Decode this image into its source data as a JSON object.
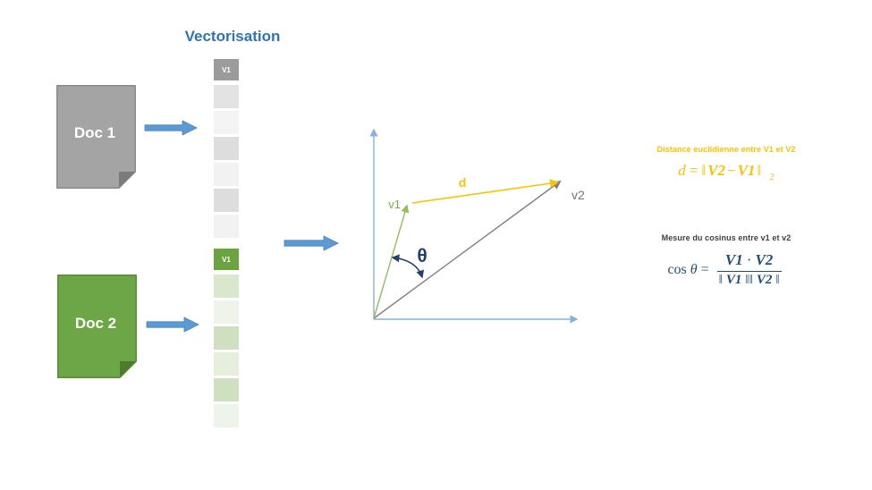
{
  "colors": {
    "title_blue": "#2E74B5",
    "arrow_blue": "#5B9BD5",
    "arrow_blue_dark": "#4A7EBB",
    "axis_blue": "#86B0E0",
    "v1_green": "#94BE58",
    "v2_gray": "#7F7F7F",
    "gold": "#FFC000",
    "theta_navy": "#26406E",
    "formula_navy": "#1F4E79"
  },
  "title": "Vectorisation",
  "docs": [
    {
      "label": "Doc 1",
      "fill": "#A4A4A4",
      "stroke": "#8C8C8C",
      "fold": "#7B7B7B"
    },
    {
      "label": "Doc 2",
      "fill": "#6CA646",
      "stroke": "#5C9038",
      "fold": "#4E7C2D"
    }
  ],
  "vector_columns": [
    {
      "header": "V1",
      "header_bg": "#9B9B9B",
      "cells": [
        "#E3E3E3",
        "#F4F4F4",
        "#DDDDDD",
        "#F2F2F2",
        "#DDDDDD",
        "#F2F2F2"
      ]
    },
    {
      "header": "V1",
      "header_bg": "#6BA33F",
      "cells": [
        "#D9E7CC",
        "#EEF4E9",
        "#CFE0C1",
        "#E6EFDC",
        "#CFE0C1",
        "#EEF4E9"
      ]
    }
  ],
  "plot": {
    "v1_label": "v1",
    "v2_label": "v2",
    "d_label": "d",
    "theta_label": "θ"
  },
  "distance": {
    "caption": "Distance euclidienne entre V1 et V2",
    "d": "d",
    "eq": "=",
    "open": "‖",
    "v2": "V2",
    "minus": "−",
    "v1": "V1",
    "close": "‖",
    "sub": "2"
  },
  "cosine": {
    "caption": "Mesure du cosinus entre v1 et v2",
    "cos": "cos",
    "theta": "θ",
    "eq": "=",
    "num_v1": "V1",
    "num_dot": "·",
    "num_v2": "V2",
    "den_open": "‖",
    "den_v1": "V1",
    "den_mid": "‖‖",
    "den_v2": "V2",
    "den_close": "‖"
  }
}
